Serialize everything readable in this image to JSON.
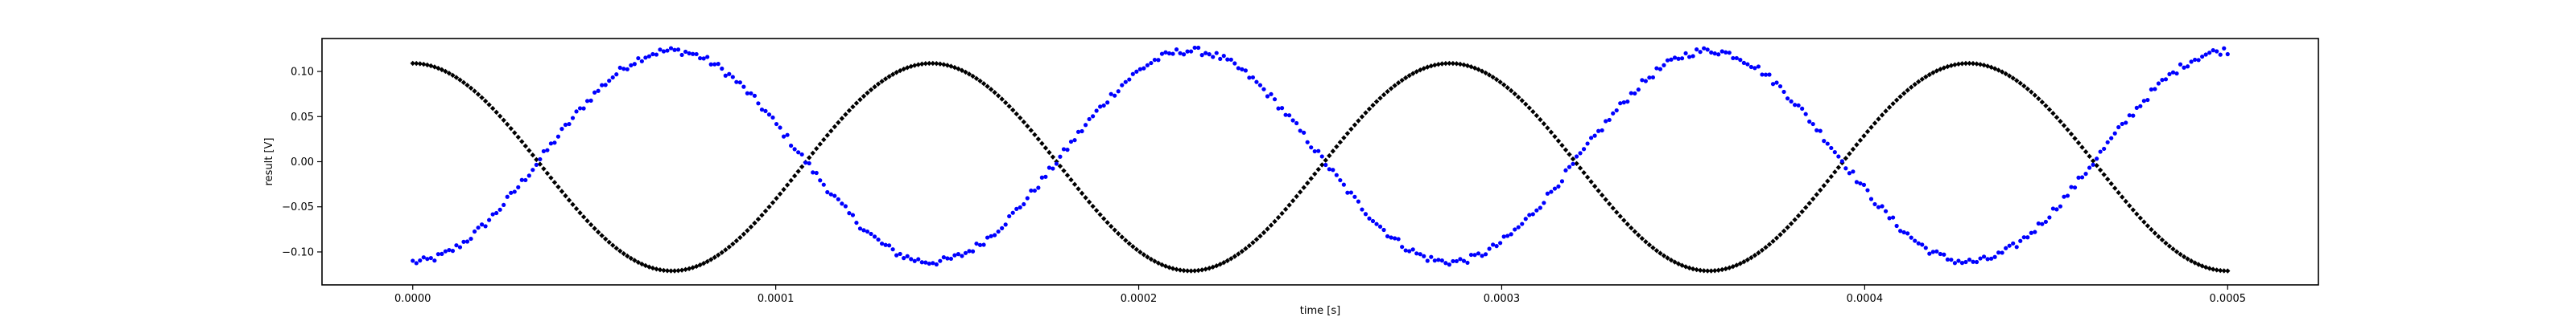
{
  "chart_data": {
    "type": "scatter",
    "xlabel": "time [s]",
    "ylabel": "result [V]",
    "xlim": [
      -2.5e-05,
      0.000525
    ],
    "ylim": [
      -0.1365,
      0.1365
    ],
    "x_ticks": [
      0.0,
      0.0001,
      0.0002,
      0.0003,
      0.0004,
      0.0005
    ],
    "x_tick_labels": [
      "0.0000",
      "0.0001",
      "0.0002",
      "0.0003",
      "0.0004",
      "0.0005"
    ],
    "y_ticks": [
      -0.1,
      -0.05,
      0.0,
      0.05,
      0.1
    ],
    "y_tick_labels": [
      "−0.10",
      "−0.05",
      "0.00",
      "0.05",
      "0.10"
    ],
    "grid": false,
    "legend": "none",
    "series": [
      {
        "color": "#000000",
        "marker": "diamond",
        "x_start": 0.0,
        "x_end": 0.0005,
        "model": "a*cos(2*pi*f*t)+c",
        "amplitude": 0.115,
        "offset": -0.006,
        "frequency_hz": 7000,
        "points": 500,
        "noise": 0.0
      },
      {
        "color": "#0000ff",
        "marker": "circle",
        "x_start": 0.0,
        "x_end": 0.0005,
        "model": "-a*cos(2*pi*f*t)+c",
        "amplitude": 0.117,
        "offset": 0.006,
        "frequency_hz": 7000,
        "points": 500,
        "noise": 0.004
      }
    ]
  }
}
